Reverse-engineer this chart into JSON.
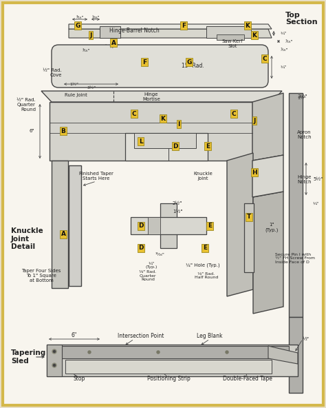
{
  "figsize": [
    4.74,
    5.92
  ],
  "dpi": 100,
  "outer_bg": "#e8dfc8",
  "inner_bg": "#f8f5ee",
  "border_color": "#d4b84a",
  "diagram_bg": "#f0ede4",
  "gray_light": "#d8d8d4",
  "gray_mid": "#c0bfb8",
  "gray_dark": "#a8a8a4",
  "stroke": "#444444",
  "label_bg": "#e8c030",
  "label_fg": "#111111",
  "text_color": "#222222",
  "bold_color": "#111111",
  "top_section_title": "Top\nSection",
  "knuckle_title": "Knuckle\nJoint\nDetail",
  "tapering_title": "Tapering\nSled"
}
